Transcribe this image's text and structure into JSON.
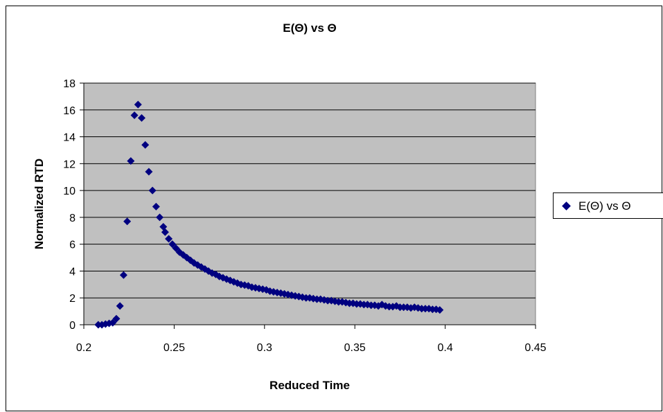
{
  "chart_data": {
    "type": "scatter",
    "title": "E(Θ) vs Θ",
    "xlabel": "Reduced Time",
    "ylabel": "Normalized RTD",
    "xlim": [
      0.2,
      0.45
    ],
    "ylim": [
      0,
      18
    ],
    "xticks": [
      "0.2",
      "0.25",
      "0.3",
      "0.35",
      "0.4",
      "0.45"
    ],
    "yticks": [
      "0",
      "2",
      "4",
      "6",
      "8",
      "10",
      "12",
      "14",
      "16",
      "18"
    ],
    "grid": true,
    "legend": "right",
    "colors": {
      "plot_background": "#c0c0c0",
      "marker": "#000080",
      "gridline": "#000000"
    },
    "series": [
      {
        "name": "E(Θ) vs Θ",
        "marker": "diamond",
        "points": [
          [
            0.208,
            0.0
          ],
          [
            0.21,
            0.0
          ],
          [
            0.212,
            0.05
          ],
          [
            0.214,
            0.1
          ],
          [
            0.216,
            0.15
          ],
          [
            0.218,
            0.45
          ],
          [
            0.22,
            1.4
          ],
          [
            0.222,
            3.7
          ],
          [
            0.224,
            7.7
          ],
          [
            0.226,
            12.2
          ],
          [
            0.228,
            15.6
          ],
          [
            0.23,
            16.4
          ],
          [
            0.232,
            15.4
          ],
          [
            0.234,
            13.4
          ],
          [
            0.236,
            11.4
          ],
          [
            0.238,
            10.0
          ],
          [
            0.24,
            8.8
          ],
          [
            0.242,
            8.0
          ],
          [
            0.244,
            7.3
          ],
          [
            0.245,
            6.9
          ],
          [
            0.247,
            6.4
          ],
          [
            0.249,
            6.0
          ],
          [
            0.251,
            5.7
          ],
          [
            0.253,
            5.4
          ],
          [
            0.255,
            5.2
          ],
          [
            0.257,
            5.0
          ],
          [
            0.259,
            4.8
          ],
          [
            0.261,
            4.6
          ],
          [
            0.263,
            4.45
          ],
          [
            0.265,
            4.3
          ],
          [
            0.267,
            4.15
          ],
          [
            0.269,
            4.0
          ],
          [
            0.271,
            3.85
          ],
          [
            0.273,
            3.75
          ],
          [
            0.275,
            3.6
          ],
          [
            0.277,
            3.5
          ],
          [
            0.279,
            3.4
          ],
          [
            0.281,
            3.3
          ],
          [
            0.283,
            3.2
          ],
          [
            0.285,
            3.1
          ],
          [
            0.287,
            3.0
          ],
          [
            0.289,
            2.95
          ],
          [
            0.291,
            2.9
          ],
          [
            0.293,
            2.8
          ],
          [
            0.295,
            2.75
          ],
          [
            0.297,
            2.7
          ],
          [
            0.299,
            2.65
          ],
          [
            0.301,
            2.6
          ],
          [
            0.303,
            2.5
          ],
          [
            0.305,
            2.45
          ],
          [
            0.307,
            2.4
          ],
          [
            0.309,
            2.35
          ],
          [
            0.311,
            2.3
          ],
          [
            0.313,
            2.25
          ],
          [
            0.315,
            2.2
          ],
          [
            0.317,
            2.15
          ],
          [
            0.319,
            2.1
          ],
          [
            0.321,
            2.05
          ],
          [
            0.323,
            2.0
          ],
          [
            0.325,
            2.0
          ],
          [
            0.327,
            1.95
          ],
          [
            0.329,
            1.9
          ],
          [
            0.331,
            1.9
          ],
          [
            0.333,
            1.85
          ],
          [
            0.335,
            1.8
          ],
          [
            0.337,
            1.8
          ],
          [
            0.339,
            1.75
          ],
          [
            0.341,
            1.7
          ],
          [
            0.343,
            1.7
          ],
          [
            0.345,
            1.65
          ],
          [
            0.347,
            1.6
          ],
          [
            0.349,
            1.6
          ],
          [
            0.351,
            1.55
          ],
          [
            0.353,
            1.55
          ],
          [
            0.355,
            1.5
          ],
          [
            0.357,
            1.5
          ],
          [
            0.359,
            1.45
          ],
          [
            0.361,
            1.45
          ],
          [
            0.363,
            1.4
          ],
          [
            0.365,
            1.5
          ],
          [
            0.367,
            1.4
          ],
          [
            0.369,
            1.35
          ],
          [
            0.371,
            1.35
          ],
          [
            0.373,
            1.4
          ],
          [
            0.375,
            1.3
          ],
          [
            0.377,
            1.3
          ],
          [
            0.379,
            1.3
          ],
          [
            0.381,
            1.25
          ],
          [
            0.383,
            1.3
          ],
          [
            0.385,
            1.25
          ],
          [
            0.387,
            1.2
          ],
          [
            0.389,
            1.2
          ],
          [
            0.391,
            1.2
          ],
          [
            0.393,
            1.15
          ],
          [
            0.395,
            1.15
          ],
          [
            0.397,
            1.1
          ]
        ]
      }
    ]
  }
}
